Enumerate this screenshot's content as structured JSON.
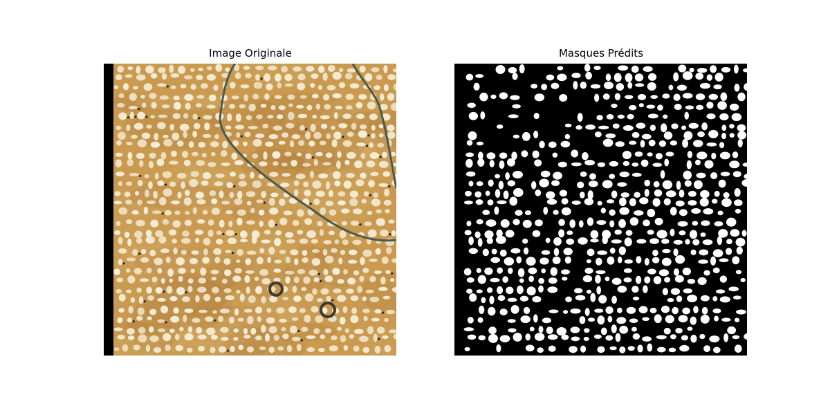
{
  "figure": {
    "panels": [
      {
        "title": "Image Originale",
        "content": "microscopy-image"
      },
      {
        "title": "Masques Prédits",
        "content": "binary-mask"
      }
    ],
    "colors": {
      "background": "#ffffff",
      "tissue_base": "#c99a50",
      "tissue_dark": "#a9743a",
      "cell_light": "#f6eed8",
      "cell_dot": "#2a2418",
      "contour_line": "#4a5a50",
      "mask_background": "#000000",
      "mask_foreground": "#ffffff"
    }
  }
}
